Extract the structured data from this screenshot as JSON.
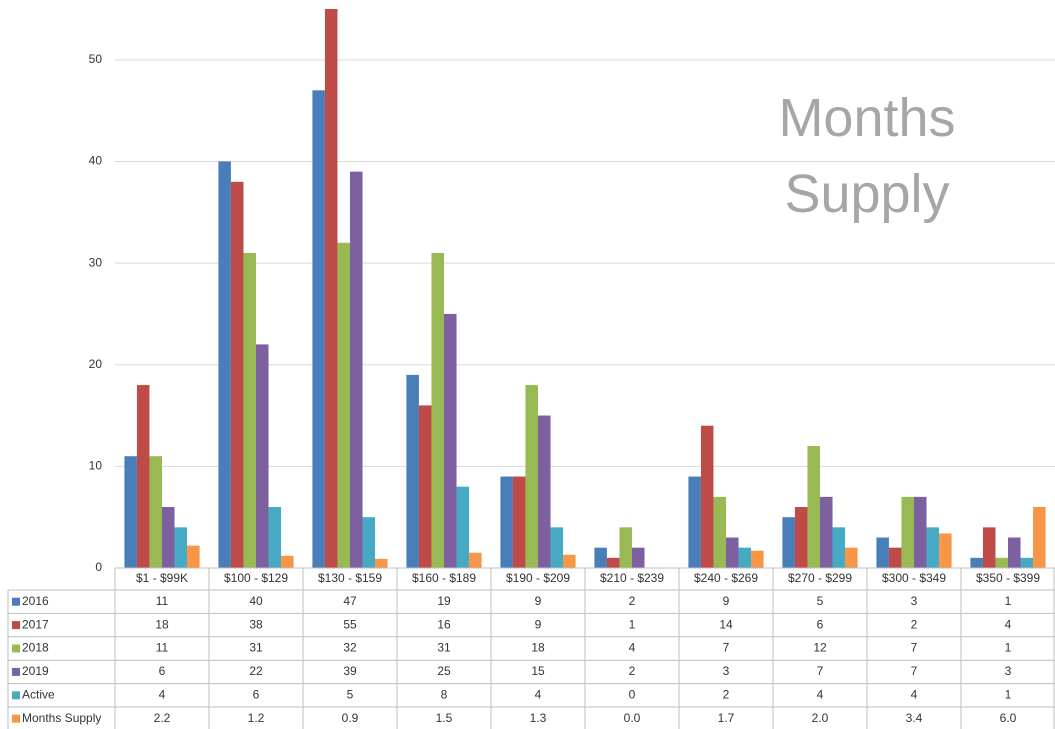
{
  "chart_data": {
    "type": "bar",
    "title": "Months Supply",
    "categories": [
      "$1 - $99K",
      "$100 - $129",
      "$130 - $159",
      "$160 - $189",
      "$190 - $209",
      "$210 - $239",
      "$240 - $269",
      "$270 - $299",
      "$300 - $349",
      "$350 - $399"
    ],
    "series": [
      {
        "name": "2016",
        "color": "#4a7ebb",
        "values": [
          11,
          40,
          47,
          19,
          9,
          2,
          9,
          5,
          3,
          1
        ]
      },
      {
        "name": "2017",
        "color": "#be4b48",
        "values": [
          18,
          38,
          55,
          16,
          9,
          1,
          14,
          6,
          2,
          4
        ]
      },
      {
        "name": "2018",
        "color": "#98b954",
        "values": [
          11,
          31,
          32,
          31,
          18,
          4,
          7,
          12,
          7,
          1
        ]
      },
      {
        "name": "2019",
        "color": "#7d60a0",
        "values": [
          6,
          22,
          39,
          25,
          15,
          2,
          3,
          7,
          7,
          3
        ]
      },
      {
        "name": "Active",
        "color": "#46aac5",
        "values": [
          4,
          6,
          5,
          8,
          4,
          0,
          2,
          4,
          4,
          1
        ]
      },
      {
        "name": "Months Supply",
        "color": "#f79646",
        "values": [
          2.2,
          1.2,
          0.9,
          1.5,
          1.3,
          0,
          1.7,
          2,
          3.4,
          6
        ],
        "value_labels": [
          "2.2",
          "1.2",
          "0.9",
          "1.5",
          "1.3",
          "0.0",
          "1.7",
          "2.0",
          "3.4",
          "6.0"
        ]
      }
    ],
    "ylim": [
      0,
      55
    ],
    "yticks": [
      0,
      10,
      20,
      30,
      40,
      50
    ],
    "grid": true
  }
}
